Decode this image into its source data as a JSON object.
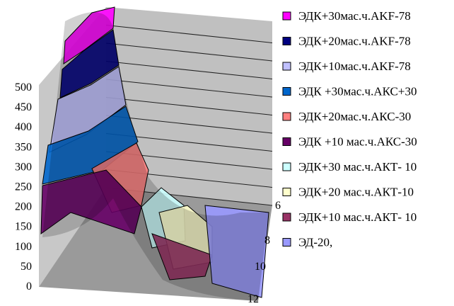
{
  "chart_data": {
    "type": "surface",
    "y_ticks": [
      "0",
      "50",
      "100",
      "150",
      "200",
      "250",
      "300",
      "350",
      "400",
      "450",
      "500"
    ],
    "ylim": [
      0,
      500
    ],
    "depth_ticks": [
      "6",
      "8",
      "10",
      "12"
    ],
    "legend_position": "right",
    "series": [
      {
        "name": "ЭДК+30мас.ч.AKF-78",
        "color": "#ff00ff"
      },
      {
        "name": "ЭДК+20мас.ч.AKF-78",
        "color": "#000080"
      },
      {
        "name": "ЭДК+10мас.ч.AKF-78",
        "color": "#c0c0ff"
      },
      {
        "name": "ЭДК +30мас.ч.АКС+30",
        "color": "#0066cc"
      },
      {
        "name": "ЭДК+20мас.ч.АКС-30",
        "color": "#ff8080"
      },
      {
        "name": "ЭДК +10 мас.ч.АКС-30",
        "color": "#660066"
      },
      {
        "name": "ЭДК+30 мас.ч.АКТ- 10",
        "color": "#ccffff"
      },
      {
        "name": "ЭДК+20 мас.ч.АКТ-10",
        "color": "#ffffcc"
      },
      {
        "name": "ЭДК+10 мас.ч.АКТ- 10",
        "color": "#993366"
      },
      {
        "name": "ЭД-20,",
        "color": "#9999ff"
      }
    ]
  }
}
